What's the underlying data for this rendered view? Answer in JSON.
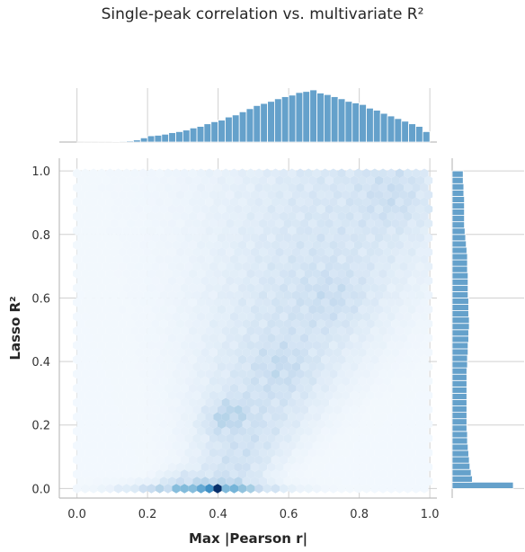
{
  "chart_data": {
    "type": "hexbin-joint",
    "title": "Single-peak correlation vs. multivariate R²",
    "xlabel": "Max |Pearson r|",
    "ylabel": "Lasso R²",
    "xlim": [
      -0.05,
      1.02
    ],
    "ylim": [
      -0.03,
      1.04
    ],
    "xticks": [
      0.0,
      0.2,
      0.4,
      0.6,
      0.8,
      1.0
    ],
    "xtick_labels": [
      "0.0",
      "0.2",
      "0.4",
      "0.6",
      "0.8",
      "1.0"
    ],
    "yticks": [
      0.0,
      0.2,
      0.4,
      0.6,
      0.8,
      1.0
    ],
    "ytick_labels": [
      "0.0",
      "0.2",
      "0.4",
      "0.6",
      "0.8",
      "1.0"
    ],
    "grid": true,
    "colormap": "Blues",
    "hex_color_light": "#f7fbff",
    "hex_color_dark": "#08306b",
    "marginal_color": "#4a90c2",
    "density_hotspots": [
      {
        "x": 0.39,
        "y": 0.0,
        "level": "max"
      },
      {
        "x": 0.3,
        "y": 0.0,
        "level": "high"
      },
      {
        "x": 0.46,
        "y": 0.0,
        "level": "high"
      },
      {
        "x": 0.45,
        "y": 0.25,
        "level": "high"
      },
      {
        "x": 0.4,
        "y": 0.21,
        "level": "high"
      }
    ],
    "top_marginal": {
      "bin_edges_start": 0.0,
      "bin_width": 0.02,
      "values": [
        0.001,
        0.002,
        0.002,
        0.003,
        0.004,
        0.01,
        0.015,
        0.02,
        0.04,
        0.08,
        0.12,
        0.13,
        0.15,
        0.18,
        0.2,
        0.23,
        0.27,
        0.3,
        0.35,
        0.39,
        0.42,
        0.48,
        0.52,
        0.58,
        0.64,
        0.7,
        0.74,
        0.78,
        0.83,
        0.87,
        0.9,
        0.95,
        0.97,
        1.0,
        0.94,
        0.91,
        0.87,
        0.83,
        0.78,
        0.75,
        0.72,
        0.65,
        0.61,
        0.55,
        0.5,
        0.45,
        0.4,
        0.35,
        0.3,
        0.2
      ]
    },
    "right_marginal": {
      "bin_edges_start": 0.0,
      "bin_width": 0.02,
      "values": [
        1.0,
        0.33,
        0.31,
        0.29,
        0.28,
        0.27,
        0.26,
        0.25,
        0.25,
        0.24,
        0.24,
        0.24,
        0.24,
        0.24,
        0.24,
        0.24,
        0.24,
        0.24,
        0.24,
        0.25,
        0.25,
        0.26,
        0.26,
        0.27,
        0.27,
        0.28,
        0.28,
        0.27,
        0.27,
        0.27,
        0.26,
        0.26,
        0.26,
        0.26,
        0.25,
        0.25,
        0.25,
        0.24,
        0.23,
        0.22,
        0.21,
        0.2,
        0.2,
        0.2,
        0.2,
        0.2,
        0.19,
        0.19,
        0.18,
        0.18
      ]
    }
  }
}
